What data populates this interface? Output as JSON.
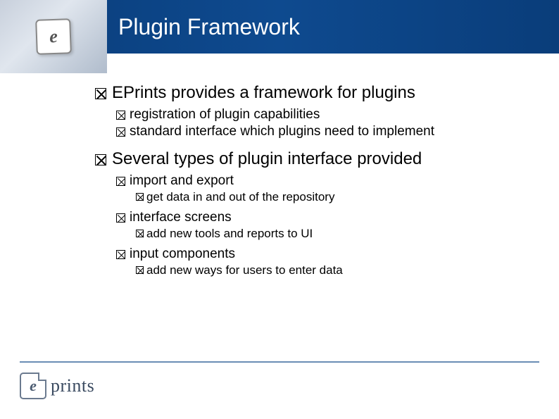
{
  "colors": {
    "header_band": "#0a3d7a",
    "footer_line": "#6a8db5",
    "text": "#000000",
    "title_text": "#ffffff",
    "logo_border": "#6b7a8f",
    "logo_text": "#3a4a60"
  },
  "title": "Plugin Framework",
  "bullets": {
    "b1": "EPrints provides a framework for plugins",
    "b1a": "registration of plugin capabilities",
    "b1b": "standard interface which plugins need to implement",
    "b2": "Several types of plugin interface provided",
    "b2a": "import and export",
    "b2a1": "get data in and out of the repository",
    "b2b": "interface screens",
    "b2b1": "add new tools and reports to UI",
    "b2c": "input components",
    "b2c1": "add new ways for users to enter data"
  },
  "logo": {
    "icon_letter": "e",
    "text": "prints"
  }
}
